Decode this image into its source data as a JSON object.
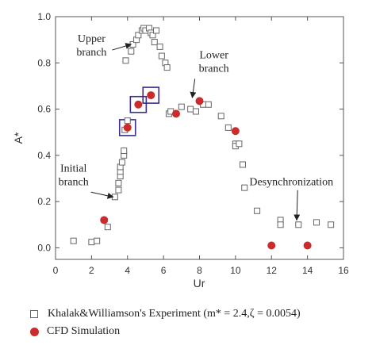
{
  "chart_data": {
    "type": "scatter",
    "xlabel": "Ur",
    "ylabel": "A*",
    "xlim": [
      0,
      16
    ],
    "ylim": [
      -0.05,
      1.0
    ],
    "xticks": [
      "0",
      "2",
      "4",
      "6",
      "8",
      "10",
      "12",
      "14",
      "16"
    ],
    "yticks": [
      "0.0",
      "0.2",
      "0.4",
      "0.6",
      "0.8",
      "1.0"
    ],
    "legend_position": "bottom",
    "series": [
      {
        "name": "Khalak&Williamson's Experiment (m* = 2.4,ζ = 0.0054)",
        "marker": "open-square",
        "color": "#666666",
        "points": [
          [
            1.0,
            0.03
          ],
          [
            2.0,
            0.025
          ],
          [
            2.3,
            0.03
          ],
          [
            2.9,
            0.09
          ],
          [
            3.3,
            0.22
          ],
          [
            3.5,
            0.25
          ],
          [
            3.5,
            0.28
          ],
          [
            3.6,
            0.31
          ],
          [
            3.6,
            0.33
          ],
          [
            3.6,
            0.35
          ],
          [
            3.7,
            0.37
          ],
          [
            3.8,
            0.4
          ],
          [
            3.8,
            0.42
          ],
          [
            3.85,
            0.51
          ],
          [
            4.0,
            0.55
          ],
          [
            3.9,
            0.81
          ],
          [
            4.2,
            0.85
          ],
          [
            4.3,
            0.88
          ],
          [
            4.5,
            0.9
          ],
          [
            4.6,
            0.92
          ],
          [
            4.8,
            0.94
          ],
          [
            4.9,
            0.95
          ],
          [
            5.0,
            0.94
          ],
          [
            5.2,
            0.95
          ],
          [
            5.3,
            0.93
          ],
          [
            5.4,
            0.92
          ],
          [
            5.6,
            0.94
          ],
          [
            5.5,
            0.89
          ],
          [
            5.8,
            0.87
          ],
          [
            5.9,
            0.83
          ],
          [
            6.1,
            0.8
          ],
          [
            6.2,
            0.78
          ],
          [
            6.3,
            0.58
          ],
          [
            6.4,
            0.59
          ],
          [
            7.0,
            0.61
          ],
          [
            7.5,
            0.6
          ],
          [
            7.8,
            0.59
          ],
          [
            8.2,
            0.62
          ],
          [
            8.5,
            0.62
          ],
          [
            9.2,
            0.57
          ],
          [
            9.6,
            0.52
          ],
          [
            10.0,
            0.45
          ],
          [
            10.0,
            0.44
          ],
          [
            10.2,
            0.45
          ],
          [
            10.4,
            0.36
          ],
          [
            10.5,
            0.26
          ],
          [
            11.2,
            0.16
          ],
          [
            12.5,
            0.12
          ],
          [
            12.5,
            0.1
          ],
          [
            13.5,
            0.1
          ],
          [
            14.5,
            0.11
          ],
          [
            15.3,
            0.1
          ]
        ]
      },
      {
        "name": "CFD Simulation",
        "marker": "filled-circle",
        "color": "#cc2b2b",
        "points": [
          [
            2.7,
            0.12
          ],
          [
            4.0,
            0.52
          ],
          [
            4.6,
            0.62
          ],
          [
            5.3,
            0.66
          ],
          [
            6.7,
            0.58
          ],
          [
            8.0,
            0.635
          ],
          [
            10.0,
            0.505
          ],
          [
            12.0,
            0.01
          ],
          [
            14.0,
            0.01
          ]
        ]
      }
    ],
    "highlight_boxes": [
      [
        4.0,
        0.52
      ],
      [
        4.6,
        0.62
      ],
      [
        5.3,
        0.66
      ]
    ],
    "annotations": [
      {
        "lines": [
          "Upper",
          "branch"
        ],
        "target": [
          4.2,
          0.88
        ],
        "anchor": [
          2.0,
          0.89
        ]
      },
      {
        "lines": [
          "Lower",
          "branch"
        ],
        "target": [
          7.6,
          0.65
        ],
        "anchor": [
          8.8,
          0.82
        ]
      },
      {
        "lines": [
          "Initial",
          "branch"
        ],
        "target": [
          3.2,
          0.22
        ],
        "anchor": [
          1.0,
          0.33
        ]
      },
      {
        "lines": [
          "Desynchronization"
        ],
        "target": [
          13.4,
          0.12
        ],
        "anchor": [
          13.1,
          0.27
        ]
      }
    ]
  }
}
